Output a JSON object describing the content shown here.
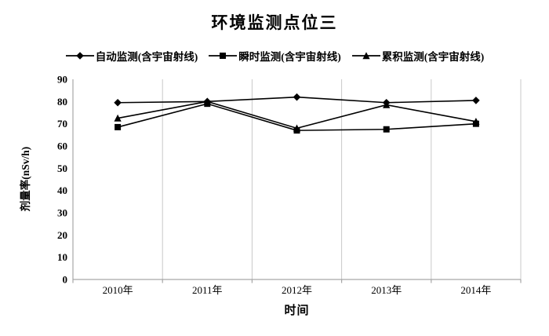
{
  "chart_data": {
    "type": "line",
    "title": "环境监测点位三",
    "categories": [
      "2010年",
      "2011年",
      "2012年",
      "2013年",
      "2014年"
    ],
    "series": [
      {
        "name": "自动监测(含宇宙射线)",
        "marker": "diamond",
        "values": [
          79.5,
          80,
          82,
          79.5,
          80.5
        ]
      },
      {
        "name": "瞬时监测(含宇宙射线)",
        "marker": "square",
        "values": [
          68.5,
          79,
          67,
          67.5,
          70
        ]
      },
      {
        "name": "累积监测(含宇宙射线)",
        "marker": "triangle",
        "values": [
          72.5,
          80,
          68,
          78.5,
          71
        ]
      }
    ],
    "xlabel": "时间",
    "ylabel": "剂量率(nSv/h)",
    "ylim": [
      0,
      90
    ],
    "y_ticks": [
      0,
      10,
      20,
      30,
      40,
      50,
      60,
      70,
      80,
      90
    ],
    "legend_position": "top",
    "grid": "vertical"
  },
  "colors": {
    "series": "#000000",
    "gridline": "#c9c9c9",
    "axis": "#a6a6a6",
    "text": "#000000",
    "background": "#ffffff"
  }
}
